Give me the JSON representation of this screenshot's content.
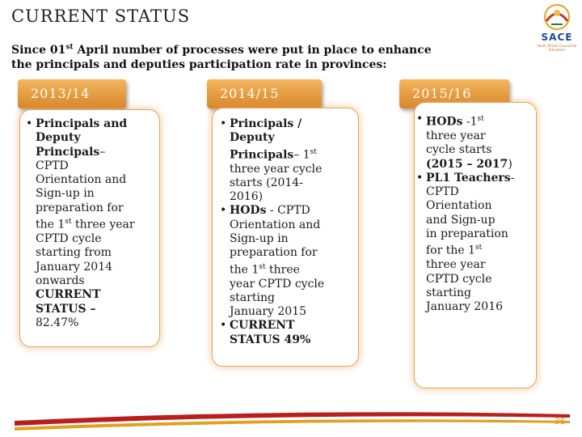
{
  "title": "CURRENT STATUS",
  "intro": {
    "line1_pre": "Since 01",
    "line1_sup": "st",
    "line1_post": " April number of processes were put in place to enhance",
    "line2": "the principals and deputies participation rate in provinces:"
  },
  "logo": {
    "text": "SACE",
    "subtitle": "South African Council for Educators"
  },
  "columns": [
    {
      "year": "2013/14",
      "lines": [
        {
          "b": "Principals and",
          "bullet": true
        },
        {
          "b": "Deputy"
        },
        {
          "b": "Principals",
          "t": "–"
        },
        {
          "t": "CPTD"
        },
        {
          "t": "Orientation and"
        },
        {
          "t": "Sign-up in"
        },
        {
          "t": "preparation for"
        },
        {
          "t": "the 1",
          "sup": "st",
          "t2": " three year"
        },
        {
          "t": "CPTD cycle"
        },
        {
          "t": "starting from"
        },
        {
          "t": "January 2014"
        },
        {
          "t": "onwards"
        },
        {
          "b": "CURRENT"
        },
        {
          "b": "STATUS –"
        },
        {
          "t": "82.47%"
        }
      ]
    },
    {
      "year": "2014/15",
      "lines": [
        {
          "b": "Principals /",
          "bullet": true
        },
        {
          "b": "Deputy"
        },
        {
          "b": "Principals",
          "t": "– 1",
          "sup": "st"
        },
        {
          "t": "three year cycle"
        },
        {
          "t": "starts (2014-"
        },
        {
          "t": "2016)"
        },
        {
          "b": "HODs",
          "t": " - CPTD",
          "bullet": true
        },
        {
          "t": "Orientation and"
        },
        {
          "t": "Sign-up in"
        },
        {
          "t": "preparation for"
        },
        {
          "t": "the 1",
          "sup": "st",
          "t2": " three"
        },
        {
          "t": "year CPTD cycle"
        },
        {
          "t": "starting"
        },
        {
          "t": "January 2015"
        },
        {
          "b": "CURRENT",
          "bullet": true
        },
        {
          "b": "STATUS 49%"
        }
      ]
    },
    {
      "year": "2015/16",
      "lines": [
        {
          "b": "HODs",
          "t": " -1",
          "sup": "st",
          "bullet": true
        },
        {
          "t": "three year"
        },
        {
          "t": "cycle starts"
        },
        {
          "b": "(2015 – 2017",
          "t": ")"
        },
        {
          "b": "PL1 Teachers",
          "t": "-",
          "bullet": true
        },
        {
          "t": "CPTD"
        },
        {
          "t": "Orientation"
        },
        {
          "t": "and Sign-up"
        },
        {
          "t": "in preparation"
        },
        {
          "t": "for the 1",
          "sup": "st"
        },
        {
          "t": "three year"
        },
        {
          "t": "CPTD cycle"
        },
        {
          "t": "starting"
        },
        {
          "t": "January 2016"
        }
      ]
    }
  ],
  "page_number": "35",
  "colors": {
    "tab_top": "#f3b65e",
    "tab_bottom": "#d8862a",
    "card_border": "#e4a45a",
    "footer_red": "#b81e1e",
    "footer_gold": "#e0a020"
  }
}
